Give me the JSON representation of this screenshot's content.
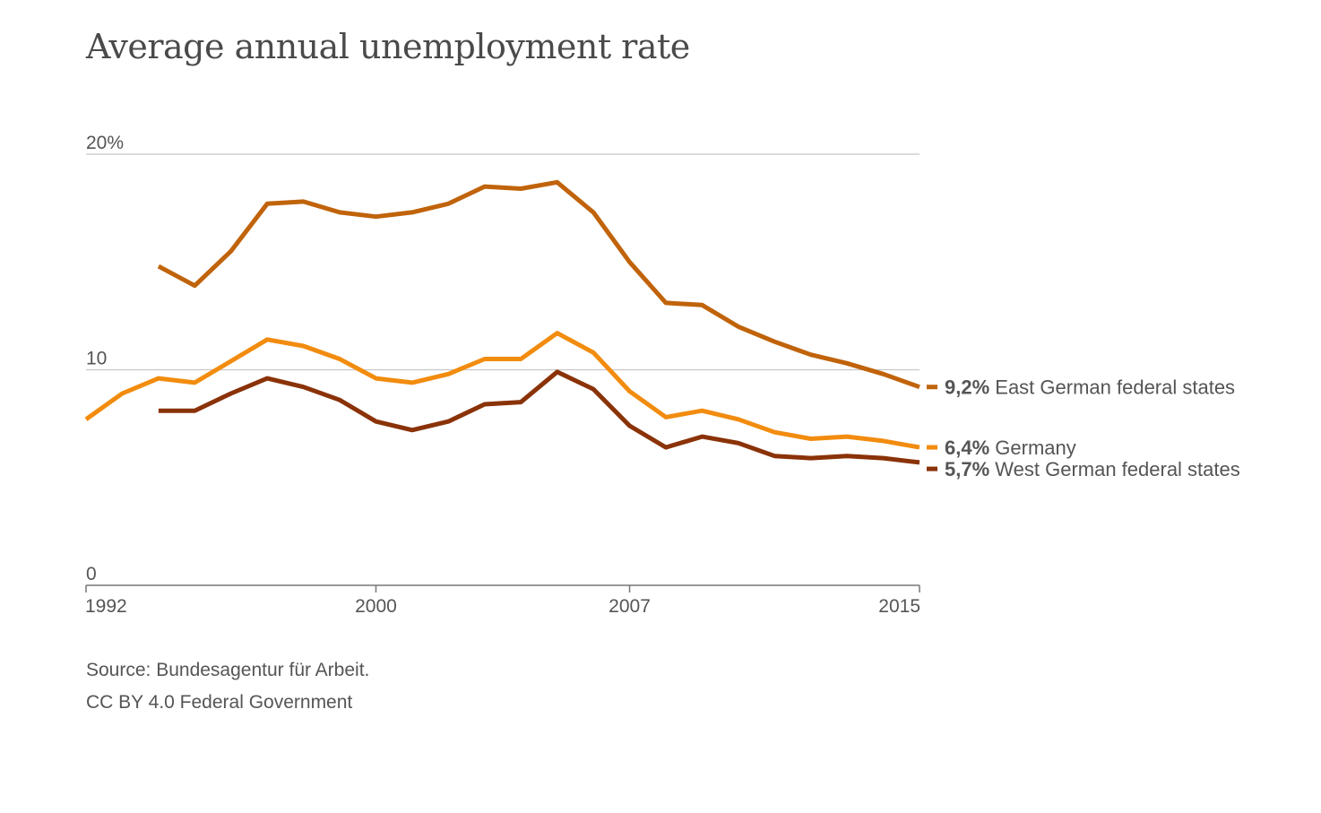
{
  "title": "Average annual unemployment rate",
  "source": "Source: Bundesagentur für Arbeit.",
  "license": "CC BY 4.0 Federal Government",
  "chart_data": {
    "type": "line",
    "title": "Average annual unemployment rate",
    "xlabel": "",
    "ylabel": "",
    "ylim": [
      0,
      20
    ],
    "xlim": [
      1992,
      2015
    ],
    "y_ticks": [
      {
        "value": 0,
        "label": "0"
      },
      {
        "value": 10,
        "label": "10"
      },
      {
        "value": 20,
        "label": "20%"
      }
    ],
    "x_ticks": [
      {
        "value": 1992,
        "label": "1992"
      },
      {
        "value": 2000,
        "label": "2000"
      },
      {
        "value": 2007,
        "label": "2007"
      },
      {
        "value": 2015,
        "label": "2015"
      }
    ],
    "grid": true,
    "legend": "right, at line ends",
    "series": [
      {
        "key": "east",
        "name": "East German federal states",
        "end_label": "9,2%",
        "color": "#c0630a",
        "x": [
          1994,
          1995,
          1996,
          1997,
          1998,
          1999,
          2000,
          2001,
          2002,
          2003,
          2004,
          2005,
          2006,
          2007,
          2008,
          2009,
          2010,
          2011,
          2012,
          2013,
          2014,
          2015
        ],
        "values": [
          14.8,
          13.9,
          15.5,
          17.7,
          17.8,
          17.3,
          17.1,
          17.3,
          17.7,
          18.5,
          18.4,
          18.7,
          17.3,
          15.0,
          13.1,
          13.0,
          12.0,
          11.3,
          10.7,
          10.3,
          9.8,
          9.2
        ]
      },
      {
        "key": "germany",
        "name": "Germany",
        "end_label": "6,4%",
        "color": "#f28c0f",
        "x": [
          1992,
          1993,
          1994,
          1995,
          1996,
          1997,
          1998,
          1999,
          2000,
          2001,
          2002,
          2003,
          2004,
          2005,
          2006,
          2007,
          2008,
          2009,
          2010,
          2011,
          2012,
          2013,
          2014,
          2015
        ],
        "values": [
          7.7,
          8.9,
          9.6,
          9.4,
          10.4,
          11.4,
          11.1,
          10.5,
          9.6,
          9.4,
          9.8,
          10.5,
          10.5,
          11.7,
          10.8,
          9.0,
          7.8,
          8.1,
          7.7,
          7.1,
          6.8,
          6.9,
          6.7,
          6.4
        ]
      },
      {
        "key": "west",
        "name": "West German federal states",
        "end_label": "5,7%",
        "color": "#8a3208",
        "x": [
          1994,
          1995,
          1996,
          1997,
          1998,
          1999,
          2000,
          2001,
          2002,
          2003,
          2004,
          2005,
          2006,
          2007,
          2008,
          2009,
          2010,
          2011,
          2012,
          2013,
          2014,
          2015
        ],
        "values": [
          8.1,
          8.1,
          8.9,
          9.6,
          9.2,
          8.6,
          7.6,
          7.2,
          7.6,
          8.4,
          8.5,
          9.9,
          9.1,
          7.4,
          6.4,
          6.9,
          6.6,
          6.0,
          5.9,
          6.0,
          5.9,
          5.7
        ]
      }
    ]
  }
}
